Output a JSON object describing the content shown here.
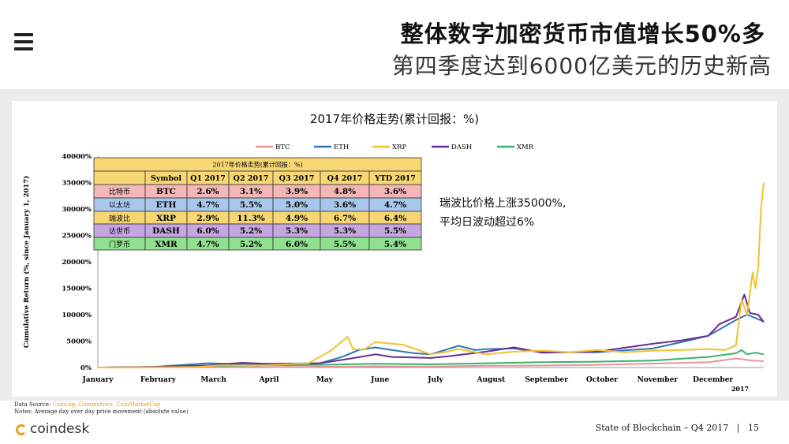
{
  "header": {
    "title_line1": "整体数字加密货币市值增长50%多",
    "title_line2": "第四季度达到6000亿美元的历史新高"
  },
  "annotation": {
    "line1": "瑞波比价格上涨35000%,",
    "line2": "平均日波动超过6%"
  },
  "footer": {
    "source_label": "Data Source: ",
    "sources": "Coincap, Coinmetrics, CoinMarketCap",
    "notes": "Notes: Average day over day price movement (absolute value)",
    "brand": "coindesk",
    "report": "State of Blockchain – Q4 2017",
    "page": "15"
  },
  "colors": {
    "BTC": "#e8939a",
    "ETH": "#2e75b6",
    "XRP": "#f2c12e",
    "DASH": "#6a2c91",
    "XMR": "#3ab26a"
  },
  "chart_data": {
    "type": "line",
    "title": "2017年价格走势(累计回报：%)",
    "ylabel": "Cumulative Return (%, since January 1, 2017)",
    "ylim": [
      0,
      40000
    ],
    "yticks": [
      "0%",
      "5000%",
      "10000%",
      "15000%",
      "20000%",
      "25000%",
      "30000%",
      "35000%",
      "40000%"
    ],
    "x_axis_year": "2017",
    "months": [
      "January",
      "February",
      "March",
      "April",
      "May",
      "June",
      "July",
      "August",
      "September",
      "October",
      "November",
      "December"
    ],
    "legend_position": "top",
    "series": [
      {
        "name": "BTC",
        "points": [
          [
            0,
            0
          ],
          [
            1,
            30
          ],
          [
            2,
            40
          ],
          [
            3,
            60
          ],
          [
            4,
            150
          ],
          [
            5,
            220
          ],
          [
            6,
            200
          ],
          [
            7,
            330
          ],
          [
            8,
            380
          ],
          [
            9,
            500
          ],
          [
            10,
            750
          ],
          [
            11,
            1000
          ],
          [
            11.5,
            1700
          ],
          [
            11.8,
            1300
          ],
          [
            12,
            1200
          ]
        ]
      },
      {
        "name": "ETH",
        "points": [
          [
            0,
            0
          ],
          [
            1,
            100
          ],
          [
            2,
            800
          ],
          [
            3,
            500
          ],
          [
            4,
            800
          ],
          [
            4.4,
            2000
          ],
          [
            4.7,
            3300
          ],
          [
            5,
            3800
          ],
          [
            5.3,
            3300
          ],
          [
            5.7,
            2700
          ],
          [
            6,
            2500
          ],
          [
            6.5,
            4100
          ],
          [
            6.8,
            3300
          ],
          [
            7,
            3500
          ],
          [
            7.5,
            3600
          ],
          [
            8,
            2900
          ],
          [
            9,
            2900
          ],
          [
            10,
            3600
          ],
          [
            10.6,
            5000
          ],
          [
            11,
            6000
          ],
          [
            11.5,
            9000
          ],
          [
            11.7,
            10000
          ],
          [
            12,
            8700
          ]
        ]
      },
      {
        "name": "XRP",
        "points": [
          [
            0,
            0
          ],
          [
            1,
            30
          ],
          [
            1.8,
            100
          ],
          [
            2.2,
            400
          ],
          [
            3,
            400
          ],
          [
            3.8,
            800
          ],
          [
            4.2,
            3200
          ],
          [
            4.5,
            5800
          ],
          [
            4.6,
            3500
          ],
          [
            4.8,
            3400
          ],
          [
            5,
            4800
          ],
          [
            5.5,
            4300
          ],
          [
            6,
            2500
          ],
          [
            6.3,
            3000
          ],
          [
            6.5,
            3500
          ],
          [
            7,
            2500
          ],
          [
            7.5,
            3000
          ],
          [
            8,
            3200
          ],
          [
            8.5,
            2900
          ],
          [
            9,
            3300
          ],
          [
            9.5,
            2900
          ],
          [
            10,
            3200
          ],
          [
            10.5,
            3300
          ],
          [
            11,
            3500
          ],
          [
            11.3,
            3300
          ],
          [
            11.5,
            4200
          ],
          [
            11.6,
            12800
          ],
          [
            11.7,
            10000
          ],
          [
            11.8,
            18000
          ],
          [
            11.85,
            15000
          ],
          [
            11.9,
            19000
          ],
          [
            11.95,
            30000
          ],
          [
            12,
            35000
          ]
        ]
      },
      {
        "name": "DASH",
        "points": [
          [
            0,
            0
          ],
          [
            1,
            100
          ],
          [
            2,
            400
          ],
          [
            2.6,
            900
          ],
          [
            3,
            700
          ],
          [
            4,
            800
          ],
          [
            4.5,
            1600
          ],
          [
            5,
            2500
          ],
          [
            5.3,
            2000
          ],
          [
            6,
            1800
          ],
          [
            6.3,
            2100
          ],
          [
            7,
            3000
          ],
          [
            7.5,
            3800
          ],
          [
            8,
            2800
          ],
          [
            9,
            3000
          ],
          [
            10,
            4500
          ],
          [
            10.5,
            5100
          ],
          [
            11,
            6000
          ],
          [
            11.2,
            8200
          ],
          [
            11.5,
            9600
          ],
          [
            11.65,
            13800
          ],
          [
            11.75,
            10300
          ],
          [
            11.9,
            10000
          ],
          [
            12,
            8600
          ]
        ]
      },
      {
        "name": "XMR",
        "points": [
          [
            0,
            0
          ],
          [
            1,
            100
          ],
          [
            2,
            250
          ],
          [
            3,
            400
          ],
          [
            4,
            500
          ],
          [
            5,
            700
          ],
          [
            6,
            600
          ],
          [
            7,
            800
          ],
          [
            8,
            1000
          ],
          [
            9,
            1100
          ],
          [
            10,
            1300
          ],
          [
            11,
            2000
          ],
          [
            11.5,
            2700
          ],
          [
            11.6,
            3300
          ],
          [
            11.7,
            2500
          ],
          [
            11.85,
            2800
          ],
          [
            12,
            2500
          ]
        ]
      }
    ]
  },
  "table": {
    "title": "2017年价格走势(累计回报：%)",
    "headers": [
      "",
      "Symbol",
      "Q1 2017",
      "Q2 2017",
      "Q3 2017",
      "Q4 2017",
      "YTD 2017"
    ],
    "rows": [
      {
        "name": "比特币",
        "symbol": "BTC",
        "cells": [
          "2.6%",
          "3.1%",
          "3.9%",
          "4.8%",
          "3.6%"
        ],
        "color": "#f4b6b6"
      },
      {
        "name": "以太坊",
        "symbol": "ETH",
        "cells": [
          "4.7%",
          "5.5%",
          "5.0%",
          "3.6%",
          "4.7%"
        ],
        "color": "#a8c7ea"
      },
      {
        "name": "瑞波比",
        "symbol": "XRP",
        "cells": [
          "2.9%",
          "11.3%",
          "4.9%",
          "6.7%",
          "6.4%"
        ],
        "color": "#f7d774"
      },
      {
        "name": "达世币",
        "symbol": "DASH",
        "cells": [
          "6.0%",
          "5.2%",
          "5.3%",
          "5.3%",
          "5.5%"
        ],
        "color": "#c5a6e0"
      },
      {
        "name": "门罗币",
        "symbol": "XMR",
        "cells": [
          "4.7%",
          "5.2%",
          "6.0%",
          "5.5%",
          "5.4%"
        ],
        "color": "#8fe08f"
      }
    ]
  }
}
